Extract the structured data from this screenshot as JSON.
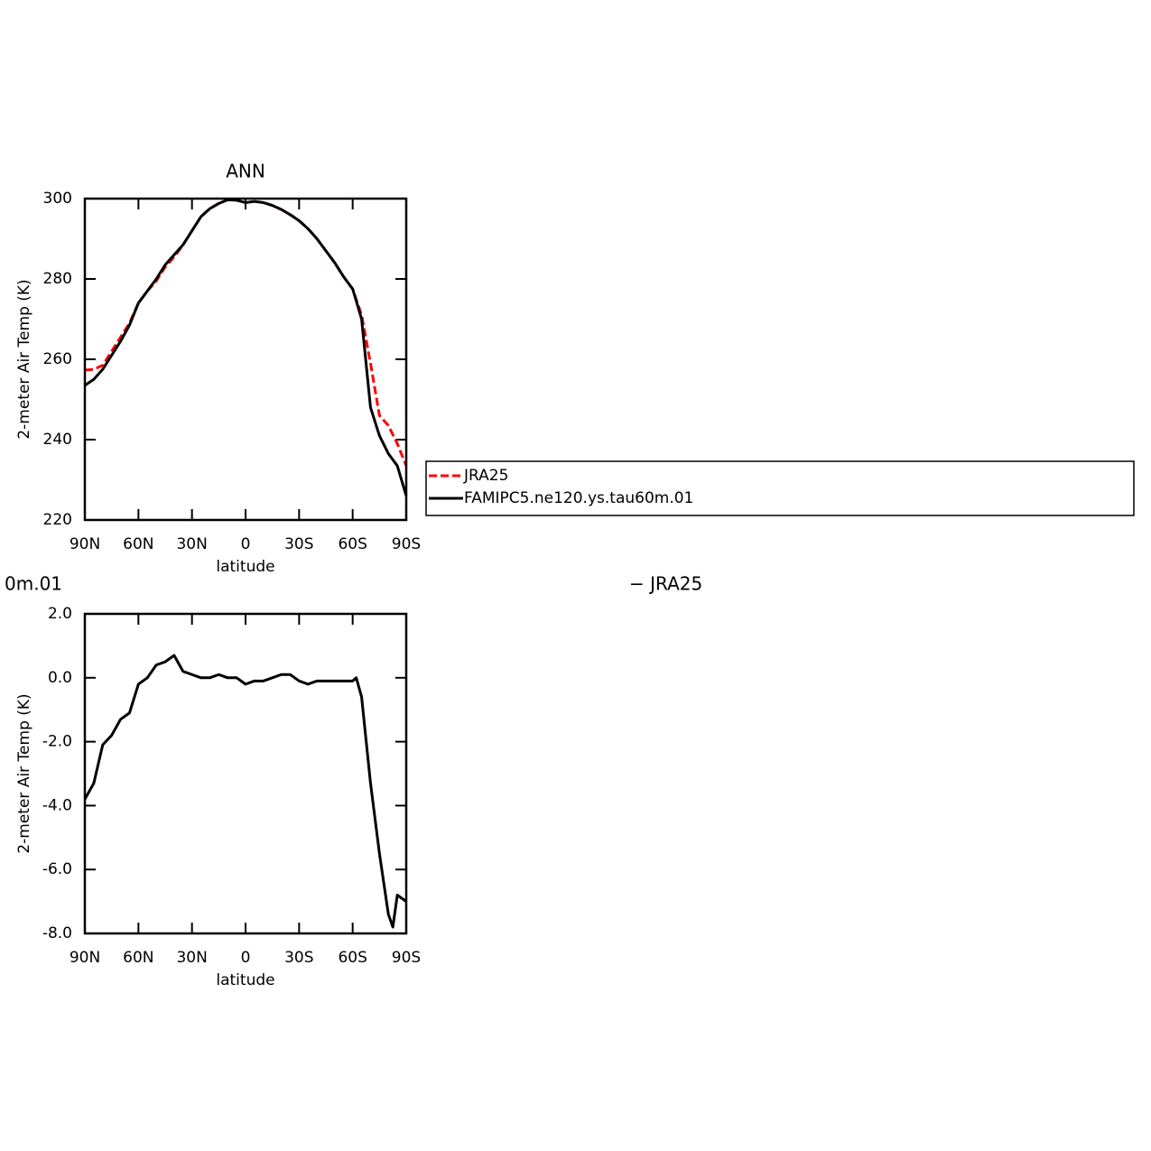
{
  "chart_data": [
    {
      "type": "line",
      "title": "ANN",
      "xlabel": "latitude",
      "ylabel": "2-meter Air Temp (K)",
      "x": [
        90,
        85,
        80,
        75,
        70,
        65,
        60,
        55,
        50,
        45,
        40,
        35,
        30,
        25,
        20,
        15,
        10,
        5,
        0,
        -5,
        -10,
        -15,
        -20,
        -25,
        -30,
        -35,
        -40,
        -45,
        -50,
        -55,
        -60,
        -65,
        -70,
        -75,
        -80,
        -85,
        -90
      ],
      "series": [
        {
          "name": "JRA25",
          "color": "#ff0000",
          "dashed": true,
          "values": [
            257.3,
            257.5,
            258.5,
            262,
            265.5,
            269,
            274,
            277,
            279.5,
            283,
            285.5,
            288.5,
            292,
            295.5,
            297.5,
            298.8,
            299.7,
            299.6,
            299,
            299.3,
            299,
            298.3,
            297.3,
            296,
            294.5,
            292.5,
            290,
            287,
            284,
            280.5,
            277.5,
            271,
            259,
            246,
            243.5,
            239,
            233.5
          ]
        },
        {
          "name": "FAMIPC5.ne120.ys.tau60m.01",
          "color": "#000000",
          "dashed": false,
          "values": [
            253.5,
            255,
            257.5,
            261,
            264.5,
            268.5,
            274,
            277,
            280,
            283.5,
            286,
            288.5,
            292,
            295.5,
            297.5,
            298.8,
            299.7,
            299.6,
            299,
            299.3,
            299,
            298.3,
            297.3,
            296,
            294.5,
            292.5,
            290,
            287,
            284,
            280.5,
            277.5,
            270,
            248,
            241,
            236.5,
            233.5,
            226
          ]
        }
      ],
      "xlim": [
        90,
        -90
      ],
      "xticks": [
        {
          "value": 90,
          "label": "90N"
        },
        {
          "value": 60,
          "label": "60N"
        },
        {
          "value": 30,
          "label": "30N"
        },
        0,
        {
          "value": -30,
          "label": "30S"
        },
        {
          "value": -60,
          "label": "60S"
        },
        {
          "value": -90,
          "label": "90S"
        }
      ],
      "ylim": [
        220,
        300
      ],
      "yticks": [
        220,
        240,
        260,
        280,
        300
      ],
      "grid": false,
      "legend": "right"
    },
    {
      "type": "line",
      "title_parts": [
        "0m.01",
        "− JRA25"
      ],
      "xlabel": "latitude",
      "ylabel": "2-meter Air Temp (K)",
      "x": [
        90,
        85,
        80,
        75,
        70,
        65,
        60,
        55,
        50,
        45,
        40,
        35,
        30,
        25,
        20,
        15,
        10,
        5,
        0,
        -5,
        -10,
        -15,
        -20,
        -25,
        -30,
        -35,
        -40,
        -45,
        -50,
        -55,
        -60,
        -62,
        -65,
        -70,
        -75,
        -80,
        -82.5,
        -85,
        -90
      ],
      "values": [
        -3.8,
        -3.3,
        -2.1,
        -1.8,
        -1.3,
        -1.1,
        -0.2,
        0.0,
        0.4,
        0.5,
        0.7,
        0.2,
        0.1,
        0.0,
        0.0,
        0.1,
        0.0,
        0.0,
        -0.2,
        -0.1,
        -0.1,
        0.0,
        0.1,
        0.1,
        -0.1,
        -0.2,
        -0.1,
        -0.1,
        -0.1,
        -0.1,
        -0.1,
        0.0,
        -0.6,
        -3.3,
        -5.5,
        -7.4,
        -7.8,
        -6.8,
        -7.0
      ],
      "color": "#000000",
      "xlim": [
        90,
        -90
      ],
      "xticks": [
        {
          "value": 90,
          "label": "90N"
        },
        {
          "value": 60,
          "label": "60N"
        },
        {
          "value": 30,
          "label": "30N"
        },
        0,
        {
          "value": -30,
          "label": "30S"
        },
        {
          "value": -60,
          "label": "60S"
        },
        {
          "value": -90,
          "label": "90S"
        }
      ],
      "ylim": [
        -8,
        2
      ],
      "yticks": [
        {
          "value": -8,
          "label": "-8.0"
        },
        {
          "value": -6,
          "label": "-6.0"
        },
        {
          "value": -4,
          "label": "-4.0"
        },
        {
          "value": -2,
          "label": "-2.0"
        },
        {
          "value": 0,
          "label": "0.0"
        },
        {
          "value": 2,
          "label": "2.0"
        }
      ],
      "grid": false
    }
  ]
}
